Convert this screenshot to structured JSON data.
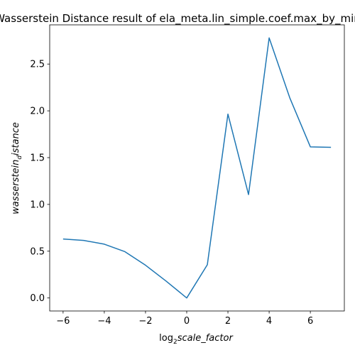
{
  "chart_data": {
    "type": "line",
    "title": "Wasserstein Distance result of ela_meta.lin_simple.coef.max_by_min",
    "xlabel": {
      "prefix": "log",
      "subscript": "2",
      "italic": "scale_factor"
    },
    "ylabel": {
      "italic_a": "wasserstein",
      "subscript": "d",
      "italic_b": "istance"
    },
    "x": [
      -6,
      -5,
      -4,
      -3,
      -2,
      -1,
      0,
      1,
      2,
      3,
      4,
      5,
      6,
      7
    ],
    "series": [
      {
        "values": [
          0.63,
          0.615,
          0.575,
          0.495,
          0.35,
          0.18,
          0.0,
          0.355,
          1.965,
          1.105,
          2.78,
          2.14,
          1.615,
          1.61
        ]
      }
    ],
    "xlim": [
      -6.65,
      7.65
    ],
    "ylim": [
      -0.139,
      2.919
    ],
    "xticks": [
      -6,
      -4,
      -2,
      0,
      2,
      4,
      6
    ],
    "xtick_labels": [
      "−6",
      "−4",
      "−2",
      "0",
      "2",
      "4",
      "6"
    ],
    "yticks": [
      0.0,
      0.5,
      1.0,
      1.5,
      2.0,
      2.5
    ],
    "ytick_labels": [
      "0.0",
      "0.5",
      "1.0",
      "1.5",
      "2.0",
      "2.5"
    ],
    "grid": false,
    "line_color": "#1f77b4"
  }
}
